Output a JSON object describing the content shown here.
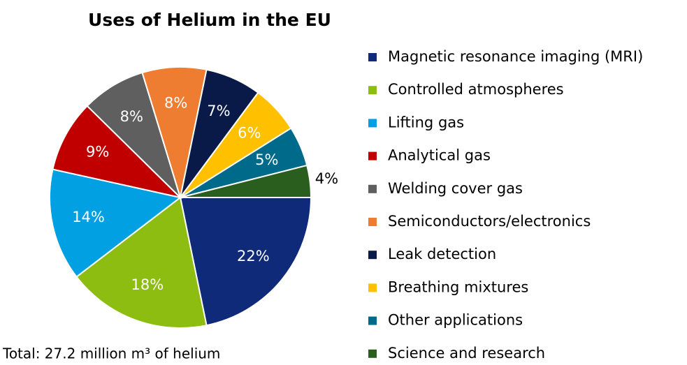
{
  "chart_data": {
    "type": "pie",
    "title": "Uses of Helium in the EU",
    "categories": [
      "Magnetic resonance imaging (MRI)",
      "Controlled atmospheres",
      "Lifting gas",
      "Analytical gas",
      "Welding cover gas",
      "Semiconductors/electronics",
      "Leak detection",
      "Breathing mixtures",
      "Other applications",
      "Science and research"
    ],
    "values": [
      22,
      18,
      14,
      9,
      8,
      8,
      7,
      6,
      5,
      4
    ],
    "value_labels": [
      "22%",
      "18%",
      "14%",
      "9%",
      "8%",
      "8%",
      "7%",
      "6%",
      "5%",
      "4%"
    ],
    "colors": [
      "#0e2a78",
      "#8cbd10",
      "#00a0e2",
      "#c00000",
      "#5f5f5f",
      "#ee7d31",
      "#0a1a48",
      "#ffc000",
      "#006a8a",
      "#2a5e1e"
    ],
    "note": "Total: 27.2 million m³ of helium"
  }
}
